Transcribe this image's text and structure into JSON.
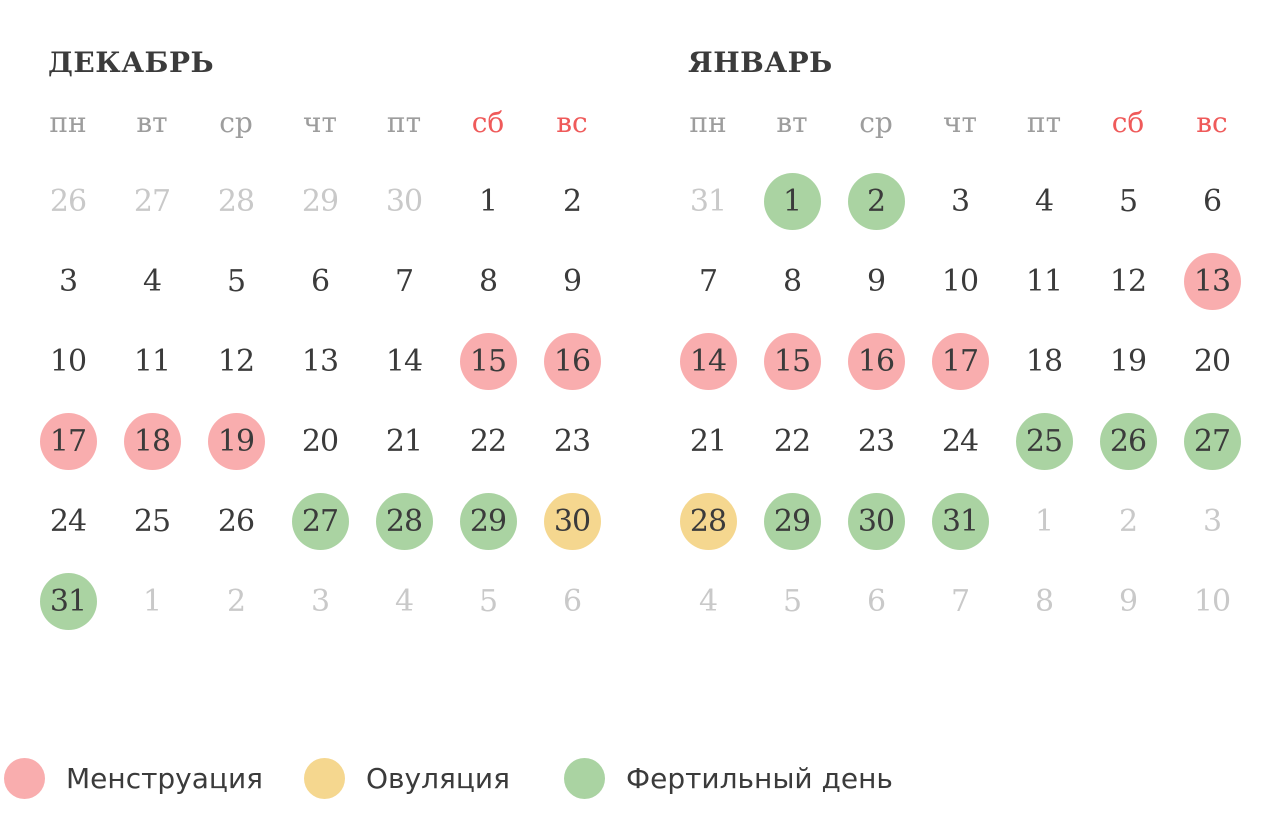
{
  "page": {
    "background": "#FFFFFF"
  },
  "colors": {
    "text_dark": "#3B3B3B",
    "text_out_month": "#C9C9C9",
    "weekday_gray": "#9D9D9D",
    "weekend_red": "#EF5A5A",
    "menstruation": "#F9ADAE",
    "ovulation": "#F5D78F",
    "fertile": "#AAD3A2"
  },
  "weekdays": [
    {
      "label": "пн",
      "weekend": false
    },
    {
      "label": "вт",
      "weekend": false
    },
    {
      "label": "ср",
      "weekend": false
    },
    {
      "label": "чт",
      "weekend": false
    },
    {
      "label": "пт",
      "weekend": false
    },
    {
      "label": "сб",
      "weekend": true
    },
    {
      "label": "вс",
      "weekend": true
    }
  ],
  "months": [
    {
      "key": "december",
      "title": "ДЕКАБРЬ",
      "days": [
        {
          "value": "26",
          "state": "out"
        },
        {
          "value": "27",
          "state": "out"
        },
        {
          "value": "28",
          "state": "out"
        },
        {
          "value": "29",
          "state": "out"
        },
        {
          "value": "30",
          "state": "out"
        },
        {
          "value": "1",
          "state": "normal"
        },
        {
          "value": "2",
          "state": "normal"
        },
        {
          "value": "3",
          "state": "normal"
        },
        {
          "value": "4",
          "state": "normal"
        },
        {
          "value": "5",
          "state": "normal"
        },
        {
          "value": "6",
          "state": "normal"
        },
        {
          "value": "7",
          "state": "normal"
        },
        {
          "value": "8",
          "state": "normal"
        },
        {
          "value": "9",
          "state": "normal"
        },
        {
          "value": "10",
          "state": "normal"
        },
        {
          "value": "11",
          "state": "normal"
        },
        {
          "value": "12",
          "state": "normal"
        },
        {
          "value": "13",
          "state": "normal"
        },
        {
          "value": "14",
          "state": "normal"
        },
        {
          "value": "15",
          "state": "menstruation"
        },
        {
          "value": "16",
          "state": "menstruation"
        },
        {
          "value": "17",
          "state": "menstruation"
        },
        {
          "value": "18",
          "state": "menstruation"
        },
        {
          "value": "19",
          "state": "menstruation"
        },
        {
          "value": "20",
          "state": "normal"
        },
        {
          "value": "21",
          "state": "normal"
        },
        {
          "value": "22",
          "state": "normal"
        },
        {
          "value": "23",
          "state": "normal"
        },
        {
          "value": "24",
          "state": "normal"
        },
        {
          "value": "25",
          "state": "normal"
        },
        {
          "value": "26",
          "state": "normal"
        },
        {
          "value": "27",
          "state": "fertile"
        },
        {
          "value": "28",
          "state": "fertile"
        },
        {
          "value": "29",
          "state": "fertile"
        },
        {
          "value": "30",
          "state": "ovulation"
        },
        {
          "value": "31",
          "state": "fertile"
        },
        {
          "value": "1",
          "state": "out"
        },
        {
          "value": "2",
          "state": "out"
        },
        {
          "value": "3",
          "state": "out"
        },
        {
          "value": "4",
          "state": "out"
        },
        {
          "value": "5",
          "state": "out"
        },
        {
          "value": "6",
          "state": "out"
        }
      ]
    },
    {
      "key": "january",
      "title": "ЯНВАРЬ",
      "days": [
        {
          "value": "31",
          "state": "out"
        },
        {
          "value": "1",
          "state": "fertile"
        },
        {
          "value": "2",
          "state": "fertile"
        },
        {
          "value": "3",
          "state": "normal"
        },
        {
          "value": "4",
          "state": "normal"
        },
        {
          "value": "5",
          "state": "normal"
        },
        {
          "value": "6",
          "state": "normal"
        },
        {
          "value": "7",
          "state": "normal"
        },
        {
          "value": "8",
          "state": "normal"
        },
        {
          "value": "9",
          "state": "normal"
        },
        {
          "value": "10",
          "state": "normal"
        },
        {
          "value": "11",
          "state": "normal"
        },
        {
          "value": "12",
          "state": "normal"
        },
        {
          "value": "13",
          "state": "menstruation"
        },
        {
          "value": "14",
          "state": "menstruation"
        },
        {
          "value": "15",
          "state": "menstruation"
        },
        {
          "value": "16",
          "state": "menstruation"
        },
        {
          "value": "17",
          "state": "menstruation"
        },
        {
          "value": "18",
          "state": "normal"
        },
        {
          "value": "19",
          "state": "normal"
        },
        {
          "value": "20",
          "state": "normal"
        },
        {
          "value": "21",
          "state": "normal"
        },
        {
          "value": "22",
          "state": "normal"
        },
        {
          "value": "23",
          "state": "normal"
        },
        {
          "value": "24",
          "state": "normal"
        },
        {
          "value": "25",
          "state": "fertile"
        },
        {
          "value": "26",
          "state": "fertile"
        },
        {
          "value": "27",
          "state": "fertile"
        },
        {
          "value": "28",
          "state": "ovulation"
        },
        {
          "value": "29",
          "state": "fertile"
        },
        {
          "value": "30",
          "state": "fertile"
        },
        {
          "value": "31",
          "state": "fertile"
        },
        {
          "value": "1",
          "state": "out"
        },
        {
          "value": "2",
          "state": "out"
        },
        {
          "value": "3",
          "state": "out"
        },
        {
          "value": "4",
          "state": "out"
        },
        {
          "value": "5",
          "state": "out"
        },
        {
          "value": "6",
          "state": "out"
        },
        {
          "value": "7",
          "state": "out"
        },
        {
          "value": "8",
          "state": "out"
        },
        {
          "value": "9",
          "state": "out"
        },
        {
          "value": "10",
          "state": "out"
        }
      ]
    }
  ],
  "legend": [
    {
      "label": "Менструация",
      "key": "menstruation",
      "color": "#F9ADAE"
    },
    {
      "label": "Овуляция",
      "key": "ovulation",
      "color": "#F5D78F"
    },
    {
      "label": "Фертильный день",
      "key": "fertile",
      "color": "#AAD3A2"
    }
  ]
}
